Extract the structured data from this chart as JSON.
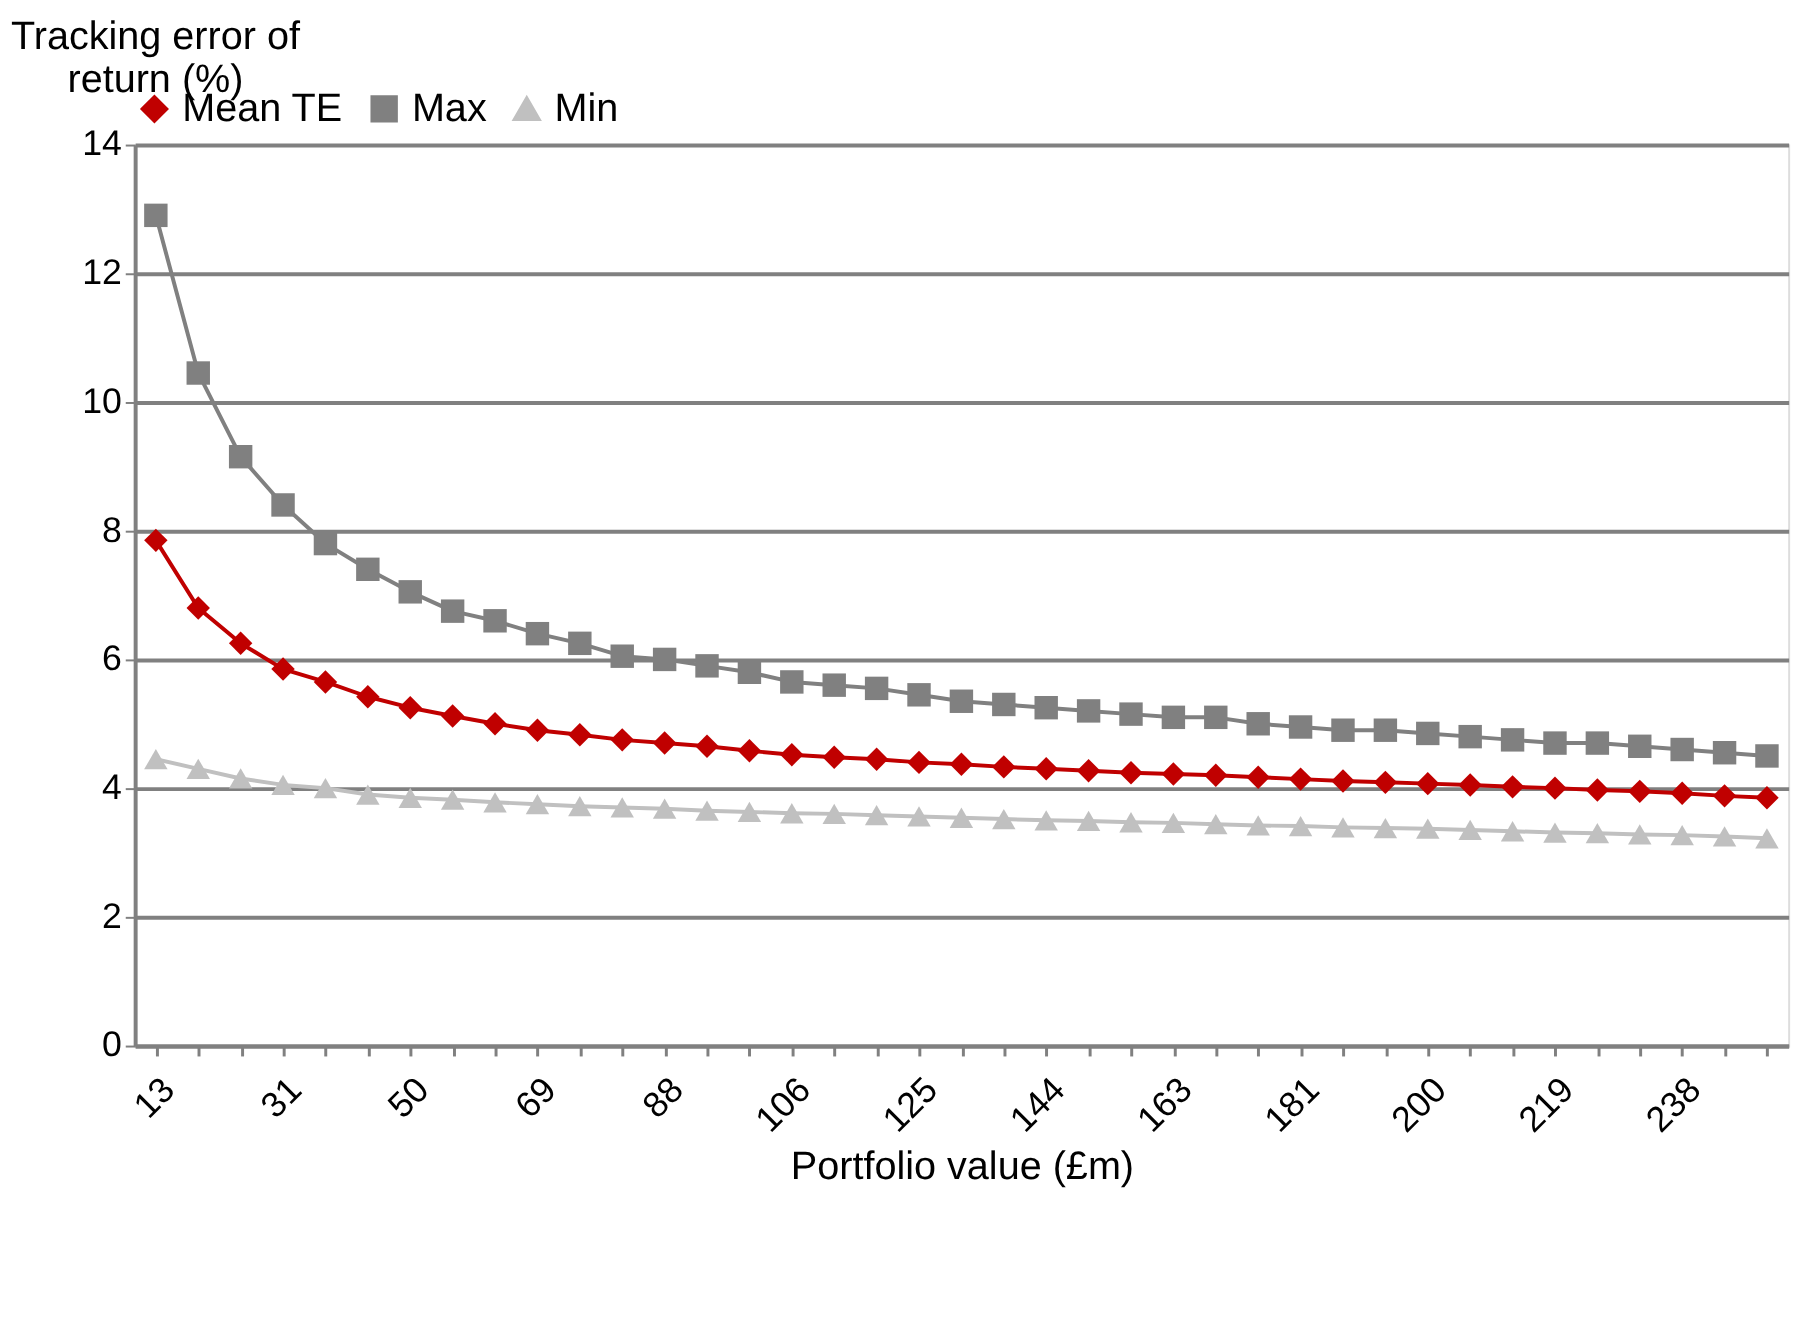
{
  "chart_data": {
    "type": "line",
    "xlabel": "Portfolio value (£m)",
    "ylabel": "Tracking error of return (%)",
    "categories": [
      "13",
      null,
      null,
      "31",
      null,
      null,
      "50",
      null,
      null,
      "69",
      null,
      null,
      "88",
      null,
      null,
      "106",
      null,
      null,
      "125",
      null,
      null,
      "144",
      null,
      null,
      "163",
      null,
      null,
      "181",
      null,
      null,
      "200",
      null,
      null,
      "219",
      null,
      null,
      "238",
      null,
      null
    ],
    "series": [
      {
        "name": "Mean TE",
        "color": "#c00000",
        "marker": "diamond",
        "values": [
          7.85,
          6.8,
          6.25,
          5.85,
          5.65,
          5.42,
          5.25,
          5.12,
          5.0,
          4.9,
          4.83,
          4.75,
          4.7,
          4.65,
          4.58,
          4.52,
          4.48,
          4.45,
          4.4,
          4.37,
          4.33,
          4.3,
          4.27,
          4.24,
          4.22,
          4.2,
          4.17,
          4.14,
          4.11,
          4.09,
          4.07,
          4.05,
          4.02,
          4.0,
          3.97,
          3.95,
          3.92,
          3.88,
          3.85
        ]
      },
      {
        "name": "Max",
        "color": "#808080",
        "marker": "square",
        "values": [
          12.9,
          10.45,
          9.15,
          8.4,
          7.8,
          7.4,
          7.05,
          6.75,
          6.6,
          6.4,
          6.25,
          6.05,
          6.0,
          5.9,
          5.8,
          5.65,
          5.6,
          5.55,
          5.45,
          5.35,
          5.3,
          5.25,
          5.2,
          5.15,
          5.1,
          5.1,
          5.0,
          4.95,
          4.9,
          4.9,
          4.85,
          4.8,
          4.75,
          4.7,
          4.7,
          4.65,
          4.6,
          4.55,
          4.5
        ]
      },
      {
        "name": "Min",
        "color": "#c0c0c0",
        "marker": "triangle",
        "values": [
          4.45,
          4.3,
          4.15,
          4.05,
          4.0,
          3.9,
          3.85,
          3.82,
          3.78,
          3.75,
          3.72,
          3.7,
          3.68,
          3.65,
          3.63,
          3.61,
          3.6,
          3.58,
          3.56,
          3.54,
          3.52,
          3.5,
          3.49,
          3.47,
          3.46,
          3.44,
          3.42,
          3.41,
          3.39,
          3.38,
          3.37,
          3.35,
          3.33,
          3.31,
          3.3,
          3.28,
          3.27,
          3.25,
          3.22
        ]
      }
    ],
    "ylim": [
      0,
      14
    ],
    "yticks": [
      0,
      2,
      4,
      6,
      8,
      10,
      12,
      14
    ],
    "grid": "y",
    "legend": "top"
  }
}
